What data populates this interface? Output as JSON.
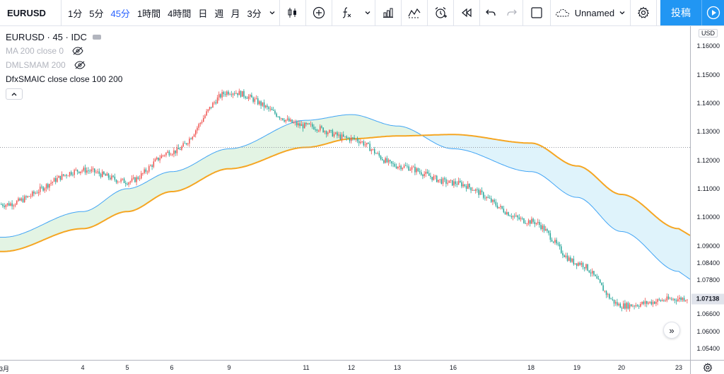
{
  "toolbar": {
    "symbol": "EURUSD",
    "intervals": [
      "1分",
      "5分",
      "45分",
      "1時間",
      "4時間",
      "日",
      "週",
      "月",
      "3分"
    ],
    "active_interval": "45分",
    "layout_name": "Unnamed",
    "publish_label": "投稿",
    "icons": [
      "chevron-down-icon",
      "candlestick-icon",
      "plus-circle-icon",
      "fx-indicator-icon",
      "bar-chart-icon",
      "compare-icon",
      "alarm-icon",
      "replay-icon",
      "undo-icon",
      "redo-icon",
      "rectangle-icon",
      "cloud-icon",
      "gear-icon",
      "fullscreen-icon",
      "camera-icon",
      "play-icon"
    ]
  },
  "legend": {
    "main": "EURUSD · 45 · IDC",
    "indicators": [
      "MA 200 close 0",
      "DMLSMAM 200",
      "DfxSMAIC close close 100 200"
    ]
  },
  "price_axis": {
    "currency": "USD",
    "labels": [
      "1.16000",
      "1.15000",
      "1.14000",
      "1.13000",
      "1.12000",
      "1.11000",
      "1.10000",
      "1.09000",
      "1.08400",
      "1.07800",
      "1.06600",
      "1.06000",
      "1.05400"
    ],
    "last_price": "1.07138"
  },
  "time_axis": {
    "labels": [
      "3月",
      "4",
      "5",
      "6",
      "9",
      "11",
      "12",
      "13",
      "16",
      "18",
      "19",
      "20",
      "23"
    ]
  },
  "colors": {
    "up": "#ef5350",
    "down": "#26a69a",
    "ma_fast": "#42a5f5",
    "ma_slow": "#f5a623",
    "band_fill_up": "#e3f4e4",
    "band_fill_down": "#dff3fb",
    "accent": "#2962ff"
  },
  "chart_data": {
    "type": "candlestick",
    "series": [
      {
        "name": "EURUSD · 45 · IDC",
        "x": [
          "3月",
          "4",
          "5",
          "6",
          "9",
          "11",
          "12",
          "13",
          "16",
          "18",
          "19",
          "20",
          "23"
        ],
        "close": [
          1.1045,
          1.1165,
          1.1125,
          1.123,
          1.144,
          1.132,
          1.1275,
          1.118,
          1.112,
          1.0985,
          1.084,
          1.069,
          1.0714
        ]
      },
      {
        "name": "MA 200 close 0",
        "x": [
          "3月",
          "4",
          "5",
          "6",
          "9",
          "11",
          "12",
          "13",
          "16",
          "18",
          "19",
          "20",
          "23"
        ],
        "values": [
          1.093,
          1.102,
          1.11,
          1.116,
          1.124,
          1.134,
          1.136,
          1.132,
          1.124,
          1.116,
          1.107,
          1.095,
          1.081
        ]
      },
      {
        "name": "DMLSMAM 200",
        "x": [
          "3月",
          "4",
          "5",
          "6",
          "9",
          "11",
          "12",
          "13",
          "16",
          "18",
          "19",
          "20",
          "23"
        ],
        "values": [
          1.088,
          1.096,
          1.102,
          1.109,
          1.117,
          1.1245,
          1.1275,
          1.1285,
          1.129,
          1.126,
          1.118,
          1.108,
          1.096
        ]
      }
    ],
    "ylim": [
      1.05,
      1.167
    ],
    "last_price": 1.07138,
    "grid": false
  }
}
